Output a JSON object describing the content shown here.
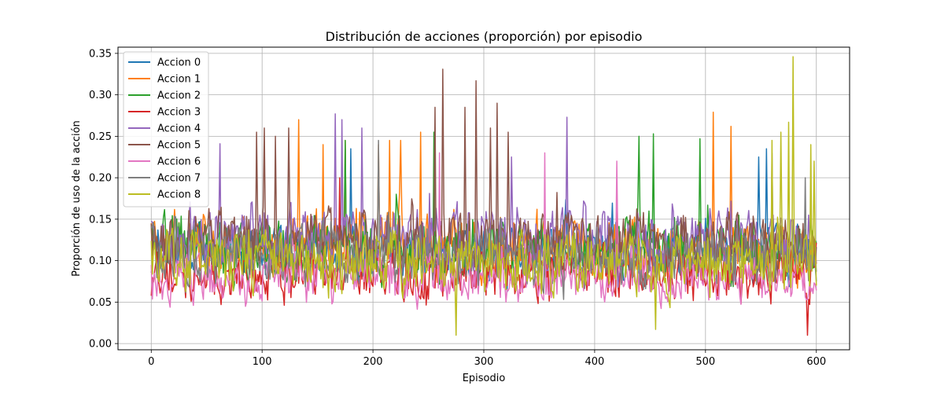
{
  "chart_data": {
    "type": "line",
    "title": "Distribución de acciones (proporción) por episodio",
    "xlabel": "Episodio",
    "ylabel": "Proporción de uso de la acción",
    "xlim": [
      -30,
      630
    ],
    "ylim": [
      -0.0075,
      0.3575
    ],
    "xticks": [
      0,
      100,
      200,
      300,
      400,
      500,
      600
    ],
    "yticks": [
      0.0,
      0.05,
      0.1,
      0.15,
      0.2,
      0.25,
      0.3,
      0.35
    ],
    "ytick_labels": [
      "0.00",
      "0.05",
      "0.10",
      "0.15",
      "0.20",
      "0.25",
      "0.30",
      "0.35"
    ],
    "grid": true,
    "legend_position": "top-left",
    "x_start": 0,
    "x_end": 600,
    "series": [
      {
        "name": "Accion 0",
        "color": "#1f77b4",
        "mean": 0.11,
        "amp": 0.04,
        "seed": 11,
        "peaks": [
          [
            175,
            0.235
          ],
          [
            180,
            0.235
          ],
          [
            205,
            0.22
          ],
          [
            555,
            0.235
          ],
          [
            548,
            0.225
          ]
        ]
      },
      {
        "name": "Accion 1",
        "color": "#ff7f0e",
        "mean": 0.115,
        "amp": 0.045,
        "seed": 23,
        "peaks": [
          [
            133,
            0.27
          ],
          [
            155,
            0.24
          ],
          [
            175,
            0.245
          ],
          [
            205,
            0.24
          ],
          [
            215,
            0.245
          ],
          [
            225,
            0.245
          ],
          [
            243,
            0.255
          ],
          [
            507,
            0.279
          ],
          [
            523,
            0.262
          ],
          [
            605,
            0.16
          ]
        ]
      },
      {
        "name": "Accion 2",
        "color": "#2ca02c",
        "mean": 0.115,
        "amp": 0.045,
        "seed": 37,
        "peaks": [
          [
            175,
            0.245
          ],
          [
            255,
            0.255
          ],
          [
            440,
            0.25
          ],
          [
            453,
            0.253
          ],
          [
            495,
            0.247
          ],
          [
            601,
            0.244
          ]
        ]
      },
      {
        "name": "Accion 3",
        "color": "#d62728",
        "mean": 0.085,
        "amp": 0.035,
        "seed": 41,
        "peaks": [
          [
            170,
            0.2
          ],
          [
            420,
            0.19
          ],
          [
            592,
            0.01
          ],
          [
            601,
            0.02
          ]
        ]
      },
      {
        "name": "Accion 4",
        "color": "#9467bd",
        "mean": 0.125,
        "amp": 0.045,
        "seed": 53,
        "peaks": [
          [
            62,
            0.241
          ],
          [
            166,
            0.277
          ],
          [
            172,
            0.27
          ],
          [
            190,
            0.26
          ],
          [
            375,
            0.273
          ],
          [
            325,
            0.225
          ]
        ]
      },
      {
        "name": "Accion 5",
        "color": "#8c564b",
        "mean": 0.125,
        "amp": 0.045,
        "seed": 67,
        "peaks": [
          [
            95,
            0.255
          ],
          [
            102,
            0.26
          ],
          [
            112,
            0.25
          ],
          [
            124,
            0.26
          ],
          [
            263,
            0.331
          ],
          [
            293,
            0.317
          ],
          [
            312,
            0.29
          ],
          [
            256,
            0.285
          ],
          [
            283,
            0.285
          ],
          [
            306,
            0.26
          ],
          [
            322,
            0.255
          ]
        ]
      },
      {
        "name": "Accion 6",
        "color": "#e377c2",
        "mean": 0.08,
        "amp": 0.035,
        "seed": 79,
        "peaks": [
          [
            260,
            0.23
          ],
          [
            355,
            0.23
          ],
          [
            420,
            0.22
          ]
        ]
      },
      {
        "name": "Accion 7",
        "color": "#7f7f7f",
        "mean": 0.105,
        "amp": 0.04,
        "seed": 83,
        "peaks": [
          [
            205,
            0.245
          ],
          [
            560,
            0.23
          ],
          [
            590,
            0.2
          ]
        ]
      },
      {
        "name": "Accion 8",
        "color": "#bcbd22",
        "mean": 0.1,
        "amp": 0.045,
        "seed": 97,
        "peaks": [
          [
            560,
            0.245
          ],
          [
            568,
            0.255
          ],
          [
            575,
            0.267
          ],
          [
            579,
            0.346
          ],
          [
            595,
            0.24
          ],
          [
            598,
            0.22
          ],
          [
            275,
            0.01
          ],
          [
            455,
            0.017
          ]
        ]
      }
    ]
  }
}
